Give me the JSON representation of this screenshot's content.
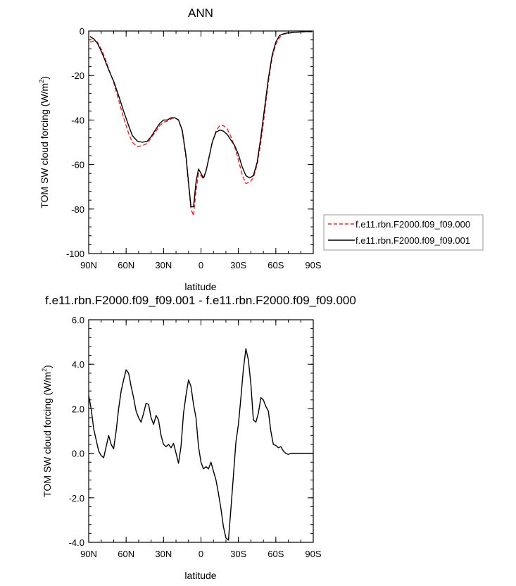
{
  "chart_data": [
    {
      "type": "line",
      "title": "ANN",
      "xlabel": "latitude",
      "ylabel": "TOM SW cloud forcing (W/m",
      "ylabel_sup": "2",
      "ylabel_end": ")",
      "xlim": [
        90,
        -90
      ],
      "ylim": [
        -100,
        0
      ],
      "x_ticks": [
        90,
        60,
        30,
        0,
        -30,
        -60,
        -90
      ],
      "x_tick_labels": [
        "90N",
        "60N",
        "30N",
        "0",
        "30S",
        "60S",
        "90S"
      ],
      "y_ticks": [
        0,
        -20,
        -40,
        -60,
        -80,
        -100
      ],
      "y_tick_labels": [
        "0",
        "-20",
        "-40",
        "-60",
        "-80",
        "-100"
      ],
      "legend_position": "right",
      "series": [
        {
          "name": "f.e11.rbn.F2000.f09_f09.000",
          "color": "#e8262a",
          "dash": "dashed",
          "x": [
            89,
            86,
            83,
            80,
            77,
            74,
            70,
            66,
            62,
            58,
            55,
            51,
            47,
            43,
            40,
            36,
            33,
            30,
            27,
            24,
            21,
            18,
            15,
            12,
            10,
            8,
            6,
            4,
            2,
            0,
            -2,
            -4,
            -6,
            -9,
            -12,
            -15,
            -18,
            -21,
            -24,
            -27,
            -30,
            -33,
            -36,
            -39,
            -42,
            -45,
            -48,
            -51,
            -54,
            -57,
            -60,
            -63,
            -66,
            -69,
            -72,
            -75,
            -78,
            -81,
            -84,
            -87,
            -89
          ],
          "y": [
            -5,
            -4.5,
            -5,
            -8,
            -12,
            -17,
            -23,
            -31,
            -39,
            -46,
            -50,
            -52,
            -51.5,
            -50.5,
            -48,
            -45,
            -42.5,
            -41,
            -40.5,
            -39.5,
            -39,
            -40,
            -45,
            -57,
            -69,
            -80,
            -83,
            -72,
            -64,
            -65,
            -66.5,
            -63,
            -58,
            -50,
            -45,
            -42.5,
            -42.5,
            -44,
            -47.5,
            -52,
            -58,
            -64.5,
            -68.5,
            -68,
            -66,
            -60,
            -50,
            -37,
            -23,
            -12,
            -6,
            -3,
            -1.5,
            -1,
            -0.8,
            -0.6,
            -0.5,
            -0.4,
            -0.3,
            -0.3,
            -0.3
          ]
        },
        {
          "name": "f.e11.rbn.F2000.f09_f09.001",
          "color": "#000000",
          "dash": "solid",
          "x": [
            89,
            86,
            83,
            80,
            77,
            74,
            70,
            66,
            62,
            58,
            55,
            51,
            47,
            43,
            40,
            36,
            33,
            30,
            27,
            24,
            21,
            18,
            15,
            12,
            10,
            8,
            6,
            4,
            2,
            0,
            -2,
            -4,
            -6,
            -9,
            -12,
            -15,
            -18,
            -21,
            -24,
            -27,
            -30,
            -33,
            -36,
            -39,
            -42,
            -45,
            -48,
            -51,
            -54,
            -57,
            -60,
            -63,
            -66,
            -69,
            -72,
            -75,
            -78,
            -81,
            -84,
            -87,
            -89
          ],
          "y": [
            -2.5,
            -3.5,
            -5.5,
            -9,
            -13,
            -17.5,
            -22.5,
            -29,
            -36,
            -42.5,
            -47,
            -49.5,
            -50,
            -49.5,
            -47.5,
            -44,
            -41.5,
            -40,
            -40,
            -39,
            -39,
            -40,
            -44.5,
            -56,
            -68,
            -79,
            -79,
            -68,
            -62,
            -64,
            -66,
            -63,
            -58,
            -50,
            -45.5,
            -44.5,
            -45,
            -46.5,
            -49,
            -51.5,
            -55.5,
            -61,
            -65,
            -66,
            -65,
            -59,
            -47.5,
            -34.5,
            -21.5,
            -11,
            -5,
            -2,
            -1.3,
            -0.9,
            -0.8,
            -0.6,
            -0.5,
            -0.4,
            -0.3,
            -0.3,
            -0.3
          ]
        }
      ]
    },
    {
      "type": "line",
      "title": "f.e11.rbn.F2000.f09_f09.001 - f.e11.rbn.F2000.f09_f09.000",
      "xlabel": "latitude",
      "ylabel": "TOM SW cloud forcing (W/m",
      "ylabel_sup": "2",
      "ylabel_end": ")",
      "xlim": [
        90,
        -90
      ],
      "ylim": [
        -4,
        6
      ],
      "x_ticks": [
        90,
        60,
        30,
        0,
        -30,
        -60,
        -90
      ],
      "x_tick_labels": [
        "90N",
        "60N",
        "30N",
        "0",
        "30S",
        "60S",
        "90S"
      ],
      "y_ticks": [
        6,
        4,
        2,
        0,
        -2,
        -4
      ],
      "y_tick_labels": [
        "6.0",
        "4.0",
        "2.0",
        "0.0",
        "-2.0",
        "-4.0"
      ],
      "series": [
        {
          "color": "#000000",
          "dash": "solid",
          "x": [
            90,
            88,
            86,
            84,
            82,
            80,
            78,
            76,
            74,
            72,
            70,
            68,
            66,
            64,
            62,
            60,
            58,
            56,
            54,
            52,
            50,
            48,
            46,
            44,
            42,
            40,
            38,
            36,
            34,
            32,
            30,
            28,
            26,
            24,
            22,
            20,
            18,
            16,
            14,
            12,
            10,
            8,
            6,
            4,
            2,
            0,
            -2,
            -4,
            -6,
            -8,
            -10,
            -12,
            -14,
            -16,
            -18,
            -20,
            -22,
            -24,
            -26,
            -28,
            -30,
            -32,
            -34,
            -36,
            -38,
            -40,
            -42,
            -44,
            -46,
            -48,
            -50,
            -52,
            -54,
            -56,
            -58,
            -60,
            -62,
            -64,
            -66,
            -68,
            -70,
            -72,
            -74,
            -76,
            -78,
            -80,
            -82,
            -84,
            -86,
            -88,
            -90
          ],
          "y": [
            2.6,
            2.0,
            1.1,
            0.6,
            0.1,
            -0.1,
            -0.2,
            0.3,
            0.8,
            0.4,
            0.2,
            1.0,
            2.0,
            2.8,
            3.3,
            3.75,
            3.6,
            3.0,
            2.5,
            1.9,
            1.6,
            1.4,
            1.8,
            2.25,
            2.2,
            1.6,
            1.3,
            1.7,
            1.5,
            0.8,
            0.4,
            0.3,
            0.4,
            0.25,
            0.45,
            0.0,
            -0.45,
            0.3,
            1.8,
            2.6,
            3.3,
            3.0,
            2.2,
            1.6,
            0.3,
            -0.4,
            -0.7,
            -0.6,
            -0.7,
            -0.4,
            -0.8,
            -1.2,
            -1.8,
            -2.5,
            -3.3,
            -3.8,
            -3.9,
            -2.5,
            -1.0,
            0.5,
            1.3,
            2.5,
            3.8,
            4.7,
            4.2,
            3.1,
            1.5,
            1.4,
            1.8,
            2.5,
            2.4,
            2.1,
            1.9,
            1.0,
            0.4,
            0.35,
            0.25,
            0.3,
            0.1,
            0.0,
            -0.05,
            0.0,
            0.0,
            0.0,
            0.0,
            0.0,
            0.0,
            0.0,
            0.0,
            0.0,
            0.0
          ]
        }
      ]
    }
  ]
}
